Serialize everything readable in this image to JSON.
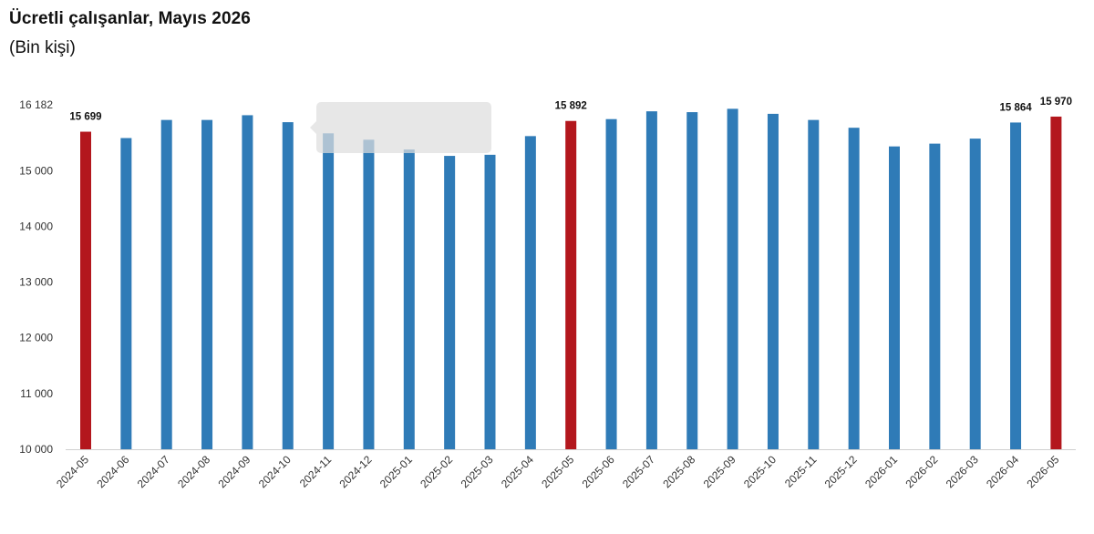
{
  "chart_data": {
    "type": "bar",
    "title": "Ücretli çalışanlar, Mayıs 2026",
    "subtitle": "(Bin kişi)",
    "xlabel": "",
    "ylabel": "",
    "ylim": [
      10000,
      16182
    ],
    "yticks": [
      "16 182",
      "15 000",
      "14 000",
      "13 000",
      "12 000",
      "11 000",
      "10 000"
    ],
    "grid": false,
    "legend": "none",
    "colors": {
      "default": "#2f7bb7",
      "highlight": "#b3171d"
    },
    "categories": [
      "2024-05",
      "2024-06",
      "2024-07",
      "2024-08",
      "2024-09",
      "2024-10",
      "2024-11",
      "2024-12",
      "2025-01",
      "2025-02",
      "2025-03",
      "2025-04",
      "2025-05",
      "2025-06",
      "2025-07",
      "2025-08",
      "2025-09",
      "2025-10",
      "2025-11",
      "2025-12",
      "2026-01",
      "2026-02",
      "2026-03",
      "2026-04",
      "2026-05"
    ],
    "series": [
      {
        "values": [
          15699,
          15585,
          15910,
          15910,
          15995,
          15870,
          15670,
          15555,
          15380,
          15265,
          15285,
          15620,
          15892,
          15925,
          16065,
          16050,
          16110,
          16020,
          15910,
          15770,
          15435,
          15485,
          15575,
          15864,
          15970
        ]
      }
    ],
    "highlighted_categories": [
      "2024-05",
      "2025-05",
      "2026-05"
    ],
    "data_labels": [
      {
        "category": "2024-05",
        "text": "15 699"
      },
      {
        "category": "2025-05",
        "text": "15 892"
      },
      {
        "category": "2026-04",
        "text": "15 864"
      },
      {
        "category": "2026-05",
        "text": "15 970"
      }
    ]
  }
}
